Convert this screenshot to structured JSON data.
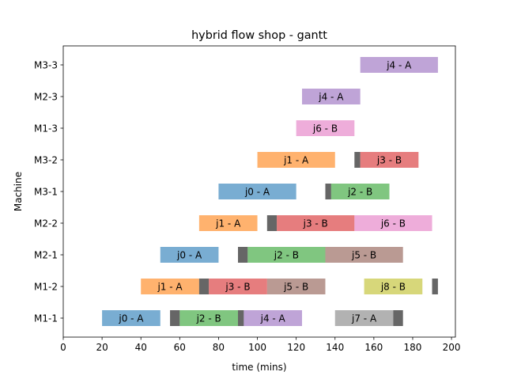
{
  "chart_data": {
    "type": "gantt",
    "title": "hybrid flow shop - gantt",
    "xlabel": "time (mins)",
    "ylabel": "Machine",
    "xlim": [
      0,
      202
    ],
    "xticks": [
      0,
      20,
      40,
      60,
      80,
      100,
      120,
      140,
      160,
      180,
      200
    ],
    "machines": [
      "M1-1",
      "M1-2",
      "M2-1",
      "M2-2",
      "M3-1",
      "M3-2",
      "M1-3",
      "M2-3",
      "M3-3"
    ],
    "tasks": [
      {
        "machine": "M1-1",
        "start": 20,
        "end": 50,
        "label": "j0 - A",
        "color": "#1f77b4"
      },
      {
        "machine": "M1-1",
        "start": 55,
        "end": 60,
        "label": "",
        "color": "#000000"
      },
      {
        "machine": "M1-1",
        "start": 60,
        "end": 90,
        "label": "j2 - B",
        "color": "#2ca02c"
      },
      {
        "machine": "M1-1",
        "start": 90,
        "end": 93,
        "label": "",
        "color": "#000000"
      },
      {
        "machine": "M1-1",
        "start": 93,
        "end": 123,
        "label": "j4 - A",
        "color": "#9467bd"
      },
      {
        "machine": "M1-1",
        "start": 140,
        "end": 170,
        "label": "j7 - A",
        "color": "#7f7f7f"
      },
      {
        "machine": "M1-1",
        "start": 170,
        "end": 175,
        "label": "",
        "color": "#000000"
      },
      {
        "machine": "M1-2",
        "start": 40,
        "end": 70,
        "label": "j1 - A",
        "color": "#ff7f0e"
      },
      {
        "machine": "M1-2",
        "start": 70,
        "end": 75,
        "label": "",
        "color": "#000000"
      },
      {
        "machine": "M1-2",
        "start": 75,
        "end": 105,
        "label": "j3 - B",
        "color": "#d62728"
      },
      {
        "machine": "M1-2",
        "start": 105,
        "end": 135,
        "label": "j5 - B",
        "color": "#8c564b"
      },
      {
        "machine": "M1-2",
        "start": 155,
        "end": 185,
        "label": "j8 - B",
        "color": "#bcbd22"
      },
      {
        "machine": "M1-2",
        "start": 190,
        "end": 193,
        "label": "",
        "color": "#000000"
      },
      {
        "machine": "M2-1",
        "start": 50,
        "end": 80,
        "label": "j0 - A",
        "color": "#1f77b4"
      },
      {
        "machine": "M2-1",
        "start": 90,
        "end": 95,
        "label": "",
        "color": "#000000"
      },
      {
        "machine": "M2-1",
        "start": 95,
        "end": 135,
        "label": "j2 - B",
        "color": "#2ca02c"
      },
      {
        "machine": "M2-1",
        "start": 135,
        "end": 175,
        "label": "j5 - B",
        "color": "#8c564b"
      },
      {
        "machine": "M2-2",
        "start": 70,
        "end": 100,
        "label": "j1 - A",
        "color": "#ff7f0e"
      },
      {
        "machine": "M2-2",
        "start": 105,
        "end": 110,
        "label": "",
        "color": "#000000"
      },
      {
        "machine": "M2-2",
        "start": 110,
        "end": 150,
        "label": "j3 - B",
        "color": "#d62728"
      },
      {
        "machine": "M2-2",
        "start": 150,
        "end": 190,
        "label": "j6 - B",
        "color": "#e377c2"
      },
      {
        "machine": "M3-1",
        "start": 80,
        "end": 120,
        "label": "j0 - A",
        "color": "#1f77b4"
      },
      {
        "machine": "M3-1",
        "start": 135,
        "end": 138,
        "label": "",
        "color": "#000000"
      },
      {
        "machine": "M3-1",
        "start": 138,
        "end": 168,
        "label": "j2 - B",
        "color": "#2ca02c"
      },
      {
        "machine": "M3-2",
        "start": 100,
        "end": 140,
        "label": "j1 - A",
        "color": "#ff7f0e"
      },
      {
        "machine": "M3-2",
        "start": 150,
        "end": 153,
        "label": "",
        "color": "#000000"
      },
      {
        "machine": "M3-2",
        "start": 153,
        "end": 183,
        "label": "j3 - B",
        "color": "#d62728"
      },
      {
        "machine": "M1-3",
        "start": 120,
        "end": 150,
        "label": "j6 - B",
        "color": "#e377c2"
      },
      {
        "machine": "M2-3",
        "start": 123,
        "end": 153,
        "label": "j4 - A",
        "color": "#9467bd"
      },
      {
        "machine": "M3-3",
        "start": 153,
        "end": 193,
        "label": "j4 - A",
        "color": "#9467bd"
      }
    ]
  }
}
